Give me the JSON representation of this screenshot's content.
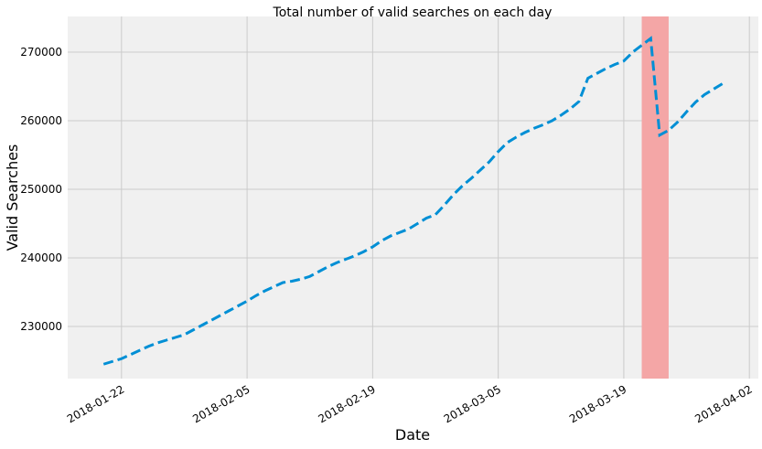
{
  "chart_data": {
    "type": "line",
    "title": "Total number of valid searches on each day",
    "x_label": "Date",
    "y_label": "Valid Searches",
    "x": [
      "2018-01-20",
      "2018-01-21",
      "2018-01-22",
      "2018-01-23",
      "2018-01-24",
      "2018-01-25",
      "2018-01-26",
      "2018-01-27",
      "2018-01-28",
      "2018-01-29",
      "2018-01-30",
      "2018-01-31",
      "2018-02-01",
      "2018-02-02",
      "2018-02-03",
      "2018-02-04",
      "2018-02-05",
      "2018-02-06",
      "2018-02-07",
      "2018-02-08",
      "2018-02-09",
      "2018-02-10",
      "2018-02-11",
      "2018-02-12",
      "2018-02-13",
      "2018-02-14",
      "2018-02-15",
      "2018-02-16",
      "2018-02-17",
      "2018-02-18",
      "2018-02-19",
      "2018-02-20",
      "2018-02-21",
      "2018-02-22",
      "2018-02-23",
      "2018-02-24",
      "2018-02-25",
      "2018-02-26",
      "2018-02-27",
      "2018-02-28",
      "2018-03-01",
      "2018-03-02",
      "2018-03-03",
      "2018-03-04",
      "2018-03-05",
      "2018-03-06",
      "2018-03-07",
      "2018-03-08",
      "2018-03-09",
      "2018-03-10",
      "2018-03-11",
      "2018-03-12",
      "2018-03-13",
      "2018-03-14",
      "2018-03-15",
      "2018-03-16",
      "2018-03-17",
      "2018-03-18",
      "2018-03-19",
      "2018-03-20",
      "2018-03-21",
      "2018-03-22",
      "2018-03-23",
      "2018-03-24",
      "2018-03-25",
      "2018-03-26",
      "2018-03-27",
      "2018-03-28",
      "2018-03-29",
      "2018-03-30"
    ],
    "values": [
      224500,
      224900,
      225300,
      225900,
      226500,
      227100,
      227600,
      228000,
      228400,
      228800,
      229500,
      230200,
      230900,
      231600,
      232300,
      233000,
      233700,
      234500,
      235200,
      235800,
      236400,
      236600,
      236900,
      237300,
      238000,
      238700,
      239300,
      239800,
      240300,
      240900,
      241600,
      242500,
      243200,
      243700,
      244200,
      245000,
      245800,
      246300,
      247700,
      249200,
      250500,
      251600,
      252800,
      254000,
      255500,
      256800,
      257600,
      258300,
      258900,
      259400,
      260000,
      260800,
      261700,
      262800,
      266200,
      266900,
      267600,
      268200,
      268700,
      270000,
      271000,
      272000,
      257900,
      258600,
      259800,
      261300,
      262700,
      263800,
      264600,
      265400
    ],
    "color": "#008fd5",
    "span": {
      "x": [
        "2018-03-21",
        "2018-03-24"
      ],
      "color": "#f4a6a6"
    },
    "xlim": [
      "2018-01-16",
      "2018-04-03"
    ],
    "xticks": [
      "2018-01-22",
      "2018-02-05",
      "2018-02-19",
      "2018-03-05",
      "2018-03-19",
      "2018-04-02"
    ],
    "ylim": [
      222400,
      275200
    ],
    "yticks": [
      230000,
      240000,
      250000,
      260000,
      270000
    ],
    "grid": true
  }
}
